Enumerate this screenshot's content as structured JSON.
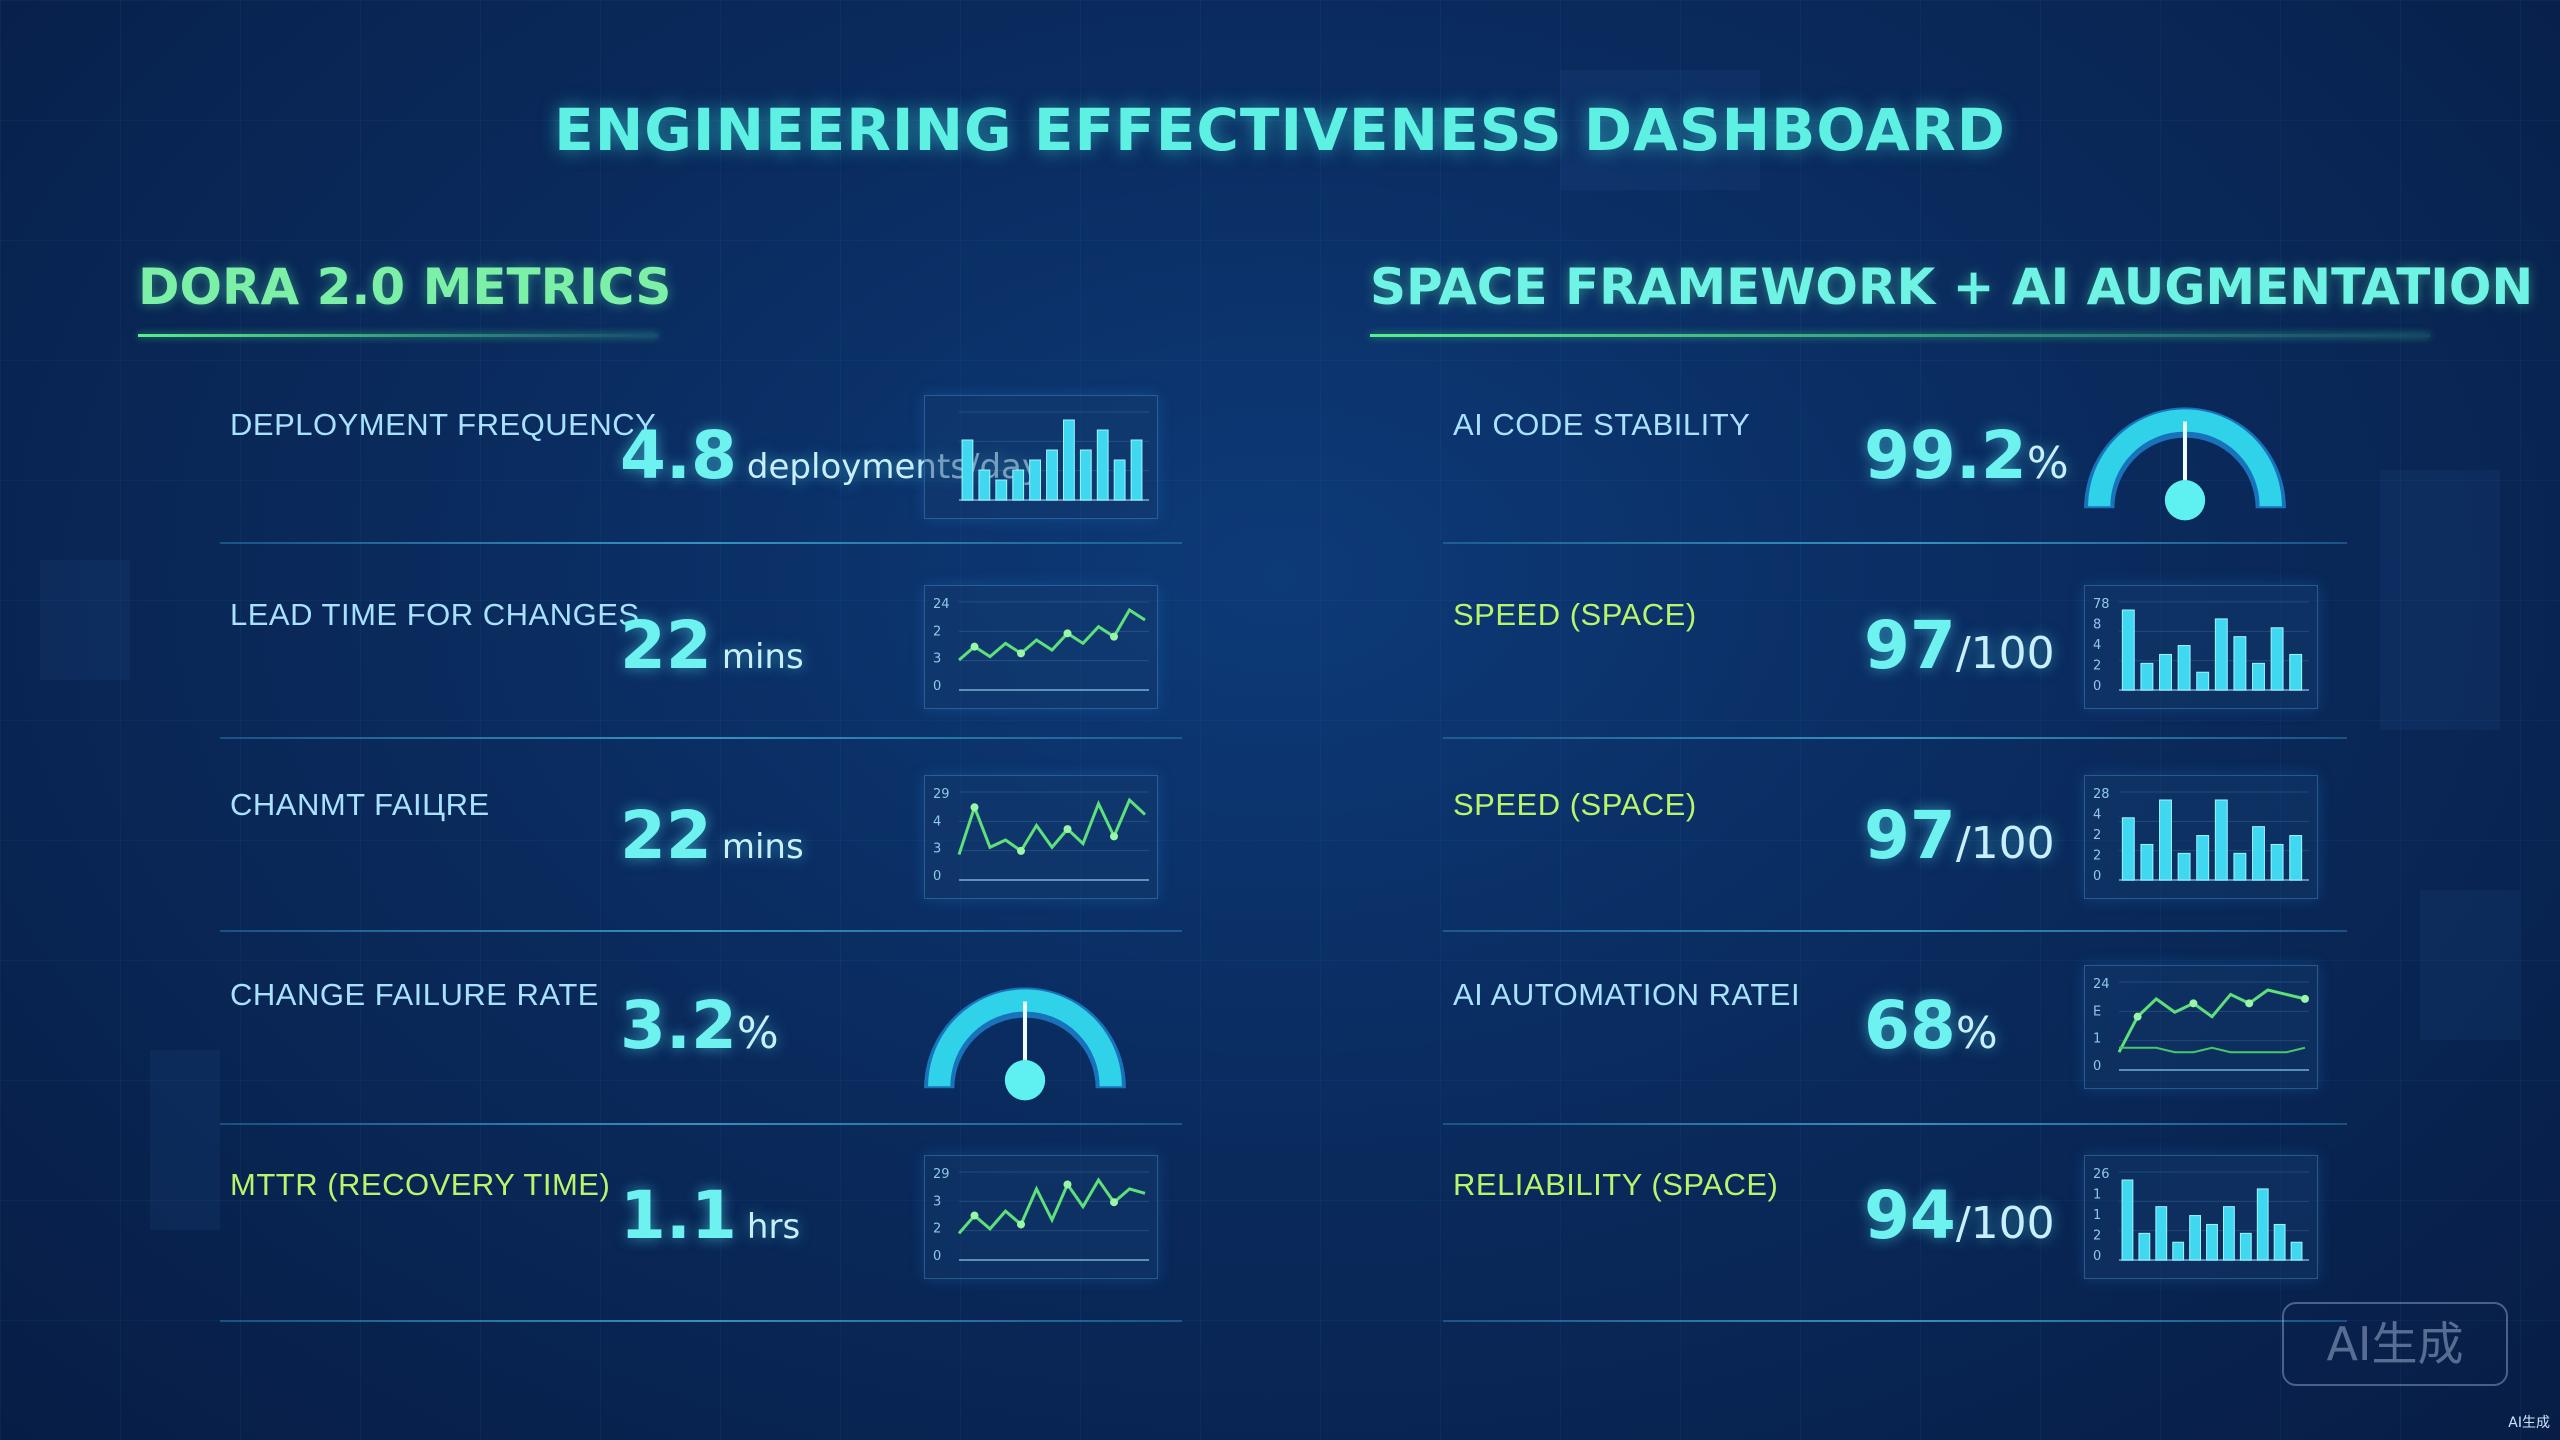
{
  "title": "ENGINEERING EFFECTIVENESS DASHBOARD",
  "left": {
    "title": "DORA 2.0 METRICS",
    "rows": [
      {
        "label": "DEPLOYMENT FREQUENCY",
        "value": "4.8",
        "unit": "deployments/day",
        "chart": "bar",
        "values": [
          6,
          3,
          2,
          3,
          4,
          5,
          8,
          5,
          7,
          4,
          6
        ]
      },
      {
        "label": "LEAD TIME FOR CHANGES",
        "value": "22",
        "unit": "mins",
        "chart": "line",
        "axis": [
          "24",
          "2",
          "3",
          "0"
        ],
        "values": [
          9,
          13,
          10,
          14,
          11,
          15,
          12,
          17,
          14,
          19,
          16,
          24,
          21
        ]
      },
      {
        "label": "CHANMT FAIЦRE",
        "value": "22",
        "unit": "mins",
        "chart": "line",
        "axis": [
          "29",
          "4",
          "3",
          "0"
        ],
        "values": [
          7,
          20,
          9,
          11,
          8,
          15,
          9,
          14,
          10,
          21,
          12,
          22,
          18
        ]
      },
      {
        "label": "CHANGE FAILURE RATE",
        "value": "3.2",
        "unit": "%",
        "chart": "gauge",
        "fraction": 0.5
      },
      {
        "label": "MTTR (RECOVERY TIME)",
        "value": "1.1",
        "unit": "hrs",
        "chart": "line",
        "axis": [
          "29",
          "3",
          "2",
          "0"
        ],
        "values": [
          6,
          10,
          7,
          11,
          8,
          16,
          9,
          17,
          12,
          18,
          13,
          16,
          15
        ]
      }
    ]
  },
  "right": {
    "title": "SPACE FRAMEWORK + AI AUGMENTATION",
    "rows": [
      {
        "label": "AI CODE STABILITY",
        "value": "99.2",
        "unit": "%",
        "chart": "gauge",
        "fraction": 0.5
      },
      {
        "label": "SPEED (SPACE)",
        "value": "97",
        "unit": "/100",
        "chart": "bar",
        "axis": [
          "78",
          "8",
          "4",
          "2",
          "0"
        ],
        "values": [
          9,
          3,
          4,
          5,
          2,
          8,
          6,
          3,
          7,
          4
        ]
      },
      {
        "label": "SPEED (SPACE)",
        "value": "97",
        "unit": "/100",
        "chart": "bar",
        "axis": [
          "28",
          "4",
          "2",
          "2",
          "0"
        ],
        "values": [
          7,
          4,
          9,
          3,
          5,
          9,
          3,
          6,
          4,
          5
        ]
      },
      {
        "label": "AI AUTOMATION RATEI",
        "value": "68",
        "unit": "%",
        "chart": "line2",
        "axis": [
          "24",
          "E",
          "1",
          "0"
        ],
        "values": [
          4,
          12,
          16,
          13,
          15,
          12,
          17,
          15,
          18,
          17,
          16
        ],
        "values2": [
          5,
          5,
          5,
          4,
          4,
          5,
          4,
          4,
          4,
          4,
          5
        ]
      },
      {
        "label": "RELIABILITY (SPACE)",
        "value": "94",
        "unit": "/100",
        "chart": "bar",
        "axis": [
          "26",
          "1",
          "1",
          "2",
          "0"
        ],
        "values": [
          9,
          3,
          6,
          2,
          5,
          4,
          6,
          3,
          8,
          4,
          2
        ]
      }
    ]
  },
  "watermark": "AI生成",
  "corner_mark": "AI生成",
  "colors": {
    "accent": "#6ef2f0",
    "green": "#7df0a8",
    "bar": "#3fd8f0",
    "line": "#5ee07a"
  }
}
